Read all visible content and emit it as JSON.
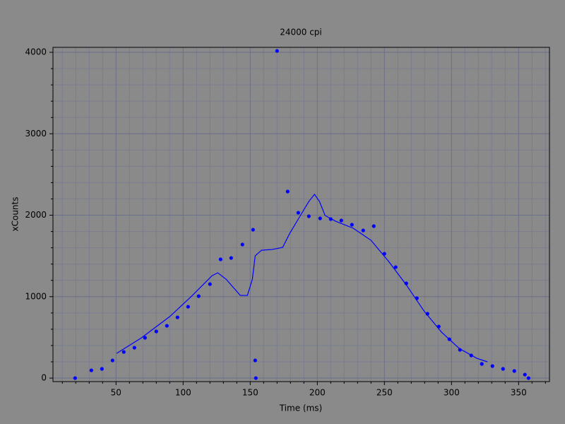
{
  "chart_data": {
    "type": "scatter",
    "title": "24000 cpi",
    "x_label": "Time (ms)",
    "y_label": "xCounts",
    "xlim": [
      3,
      373
    ],
    "ylim": [
      -43,
      4061
    ],
    "xticks": [
      50,
      100,
      150,
      200,
      250,
      300,
      350
    ],
    "yticks": [
      0,
      1000,
      2000,
      3000,
      4000
    ],
    "xminorticks": [
      10,
      20,
      30,
      40,
      60,
      70,
      80,
      90,
      110,
      120,
      130,
      140,
      160,
      170,
      180,
      190,
      210,
      220,
      230,
      240,
      260,
      270,
      280,
      290,
      310,
      320,
      330,
      340,
      360,
      370
    ],
    "yminorticks": [
      200,
      400,
      600,
      800,
      1200,
      1400,
      1600,
      1800,
      2200,
      2400,
      2600,
      2800,
      3200,
      3400,
      3600,
      3800
    ],
    "grid": true,
    "series": [
      {
        "mode": "markers",
        "color": "#0000ff",
        "x": [
          19.5,
          31.6,
          39.5,
          47.4,
          55.8,
          63.7,
          71.6,
          80,
          87.9,
          95.8,
          103.7,
          111.6,
          120,
          127.9,
          135.8,
          144.2,
          152.1,
          153.7,
          154.2,
          170,
          177.9,
          185.8,
          193.7,
          202.1,
          210,
          217.9,
          225.8,
          234.2,
          242.1,
          250,
          258.4,
          266.3,
          274.2,
          282.1,
          290.5,
          298.4,
          306.3,
          314.7,
          322.6,
          330.5,
          338.4,
          346.8,
          354.7,
          357.4
        ],
        "values": [
          0,
          95,
          113,
          217,
          321,
          373,
          495,
          573,
          642,
          746,
          876,
          1006,
          1154,
          1458,
          1475,
          1640,
          1822,
          217,
          0,
          4017,
          2291,
          2030,
          1987,
          1961,
          1952,
          1935,
          1883,
          1813,
          1866,
          1527,
          1362,
          1163,
          981,
          790,
          633,
          477,
          347,
          278,
          174,
          148,
          113,
          87,
          43,
          0
        ]
      },
      {
        "mode": "line",
        "color": "#0000ff",
        "x": [
          50.5,
          69,
          90,
          105.8,
          121.6,
          125.8,
          132,
          142.6,
          147.9,
          151.6,
          153.7,
          158.4,
          166.3,
          174.2,
          179.5,
          187.4,
          193.7,
          197.9,
          201.6,
          205.8,
          213.7,
          226.8,
          240,
          253.2,
          266.3,
          279.5,
          292.6,
          305.8,
          318.9,
          326.8
        ],
        "values": [
          304,
          495,
          755,
          998,
          1258,
          1293,
          1215,
          1015,
          1015,
          1215,
          1501,
          1570,
          1579,
          1605,
          1779,
          1996,
          2169,
          2256,
          2169,
          1996,
          1926,
          1840,
          1692,
          1432,
          1145,
          824,
          564,
          364,
          243,
          200
        ]
      }
    ]
  }
}
